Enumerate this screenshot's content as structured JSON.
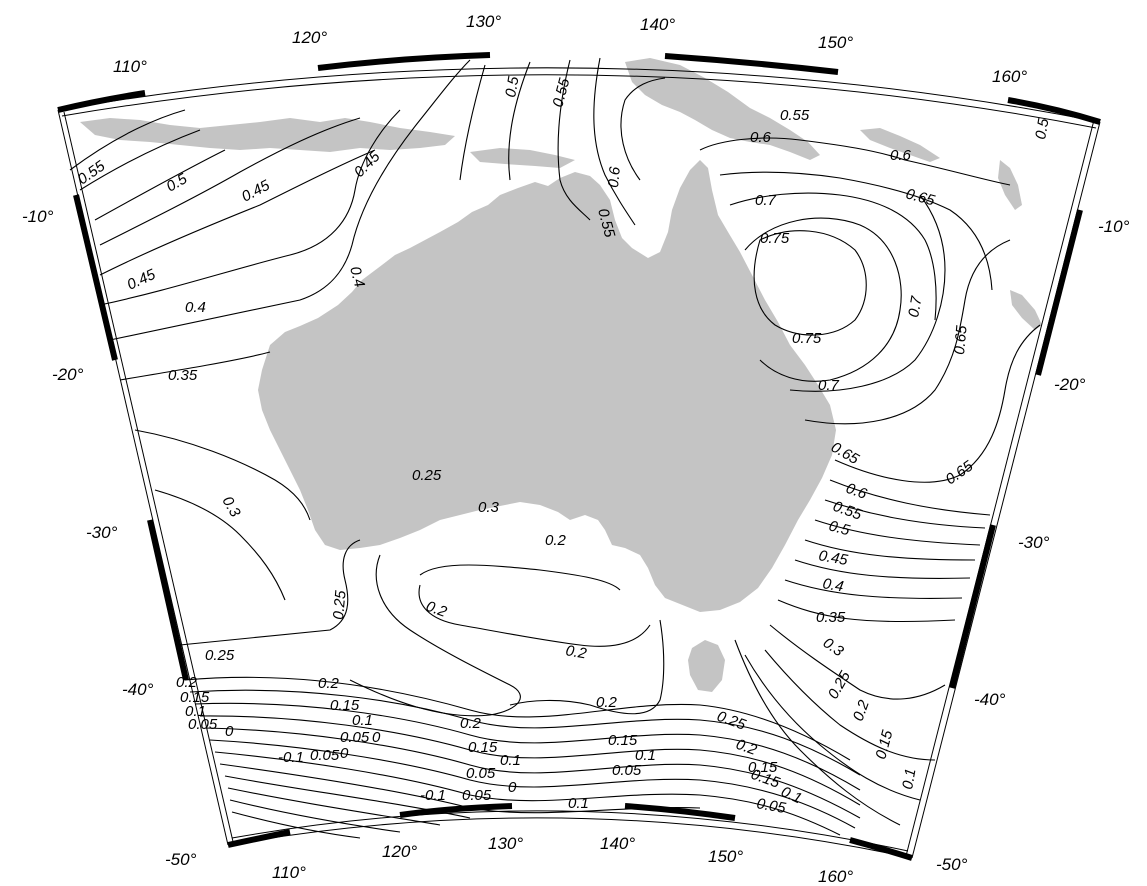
{
  "map": {
    "projection": "conic",
    "land_color": "#c4c4c4",
    "background_color": "#ffffff",
    "contour_color": "#000000"
  },
  "axes": {
    "top_longitudes": [
      "110°",
      "120°",
      "130°",
      "140°",
      "150°",
      "160°"
    ],
    "bottom_longitudes": [
      "110°",
      "120°",
      "130°",
      "140°",
      "150°",
      "160°"
    ],
    "left_latitudes": [
      "-10°",
      "-20°",
      "-30°",
      "-40°",
      "-50°"
    ],
    "right_latitudes": [
      "-10°",
      "-20°",
      "-30°",
      "-40°",
      "-50°"
    ]
  },
  "contour_labels": [
    "0.55",
    "0.5",
    "0.45",
    "0.45",
    "0.5",
    "0.55",
    "0.55",
    "0.6",
    "0.6",
    "0.6",
    "0.55",
    "0.5",
    "0.65",
    "0.7",
    "0.75",
    "0.75",
    "0.7",
    "0.65",
    "0.7",
    "0.45",
    "0.4",
    "0.4",
    "0.35",
    "0.3",
    "0.3",
    "0.2",
    "0.2",
    "0.2",
    "0.25",
    "0.25",
    "0.65",
    "0.65",
    "0.6",
    "0.55",
    "0.5",
    "0.45",
    "0.4",
    "0.35",
    "0.3",
    "0.25",
    "0.2",
    "0.15",
    "0.1",
    "0.2",
    "0.15",
    "0.1",
    "0.05",
    "0",
    "0.2",
    "0.15",
    "0.1",
    "0.05",
    "0",
    "-0.1",
    "0.05",
    "0",
    "0.2",
    "0.15",
    "0.1",
    "0.05",
    "0",
    "-0.1",
    "0.05",
    "0.1",
    "0.15",
    "0.1",
    "0.05",
    "0.25",
    "0.2",
    "0.15",
    "0.05",
    "0.1",
    "0.15",
    "0.2",
    "0.25"
  ]
}
